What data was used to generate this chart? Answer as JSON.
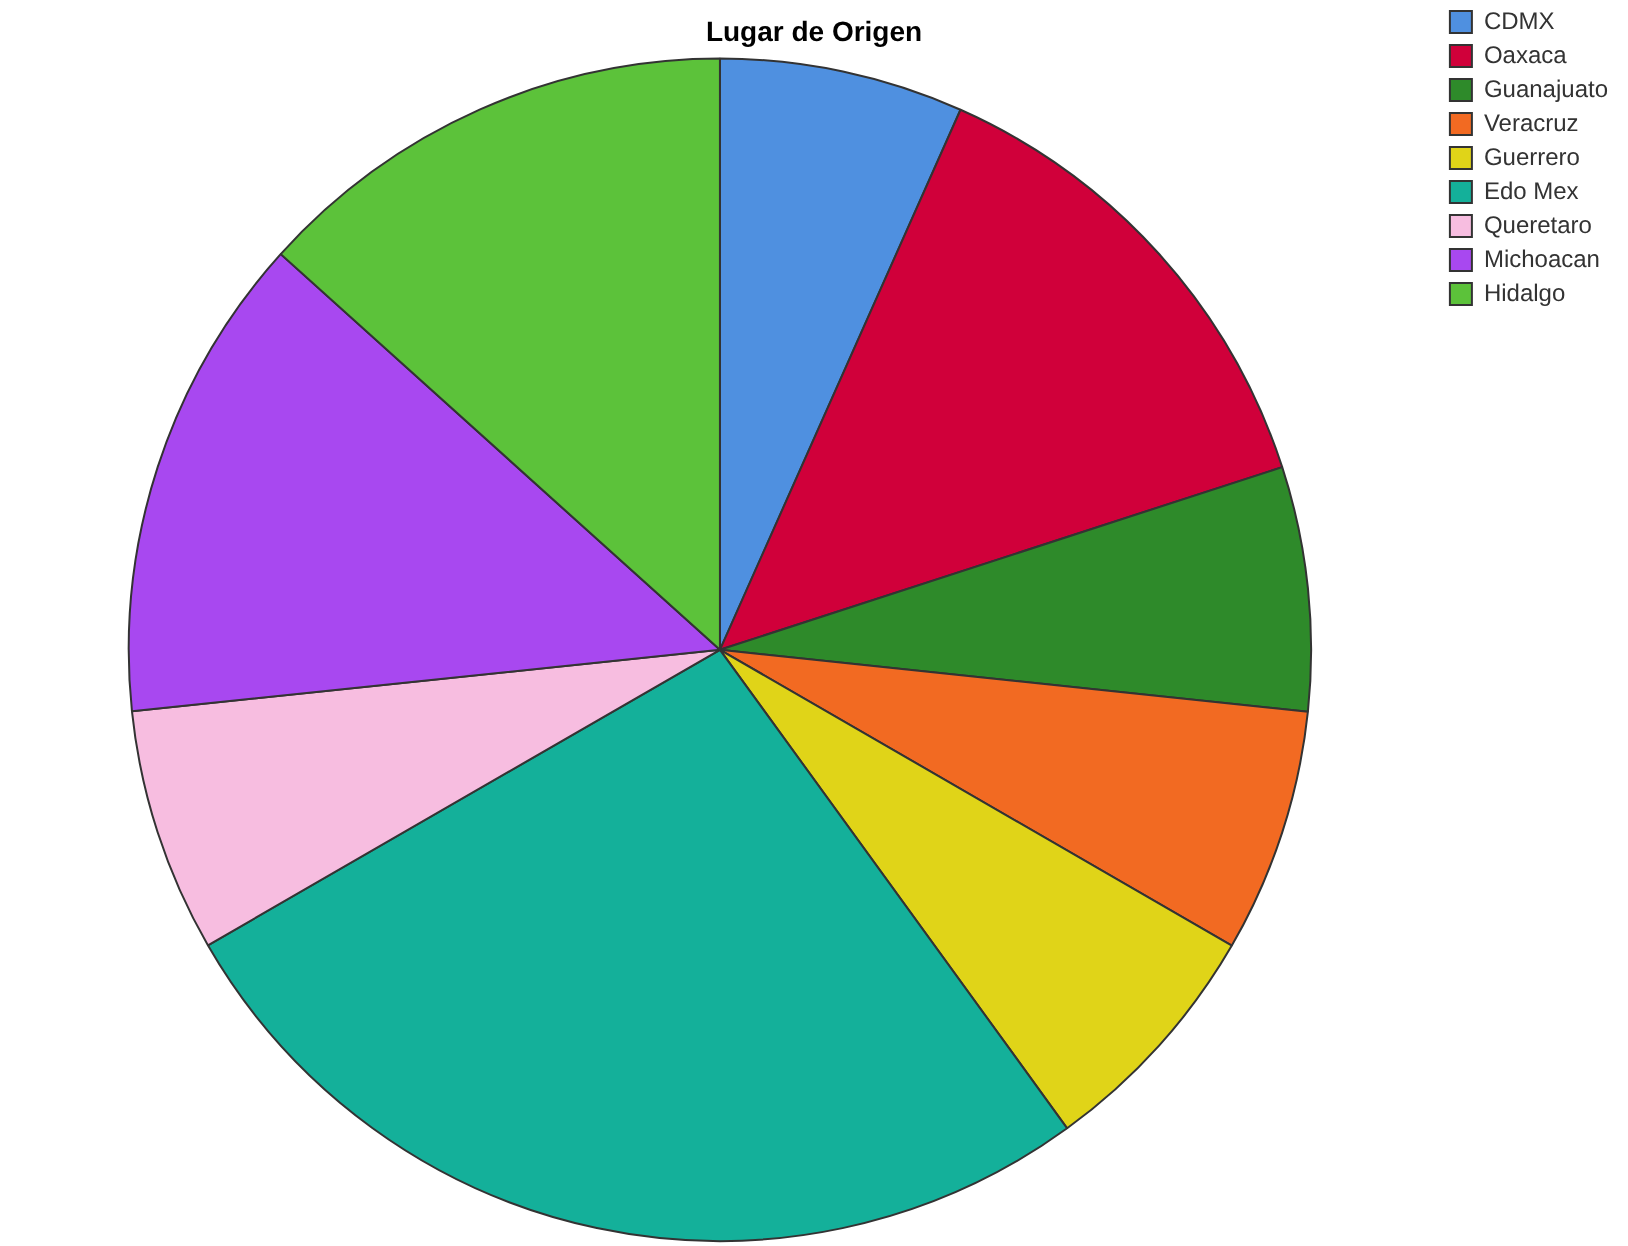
{
  "chart_data": {
    "type": "pie",
    "title": "Lugar de Origen",
    "categories": [
      "CDMX",
      "Oaxaca",
      "Guanajuato",
      "Veracruz",
      "Guerrero",
      "Edo Mex",
      "Queretaro",
      "Michoacan",
      "Hidalgo"
    ],
    "values": [
      6.67,
      13.33,
      6.67,
      6.67,
      6.67,
      26.66,
      6.67,
      13.33,
      13.33
    ],
    "colors": [
      "#4f90e0",
      "#d0003a",
      "#2e8a2a",
      "#f26a22",
      "#e0d418",
      "#14b09a",
      "#f7bde0",
      "#a848f0",
      "#5cc23a"
    ],
    "legend": "top right"
  }
}
